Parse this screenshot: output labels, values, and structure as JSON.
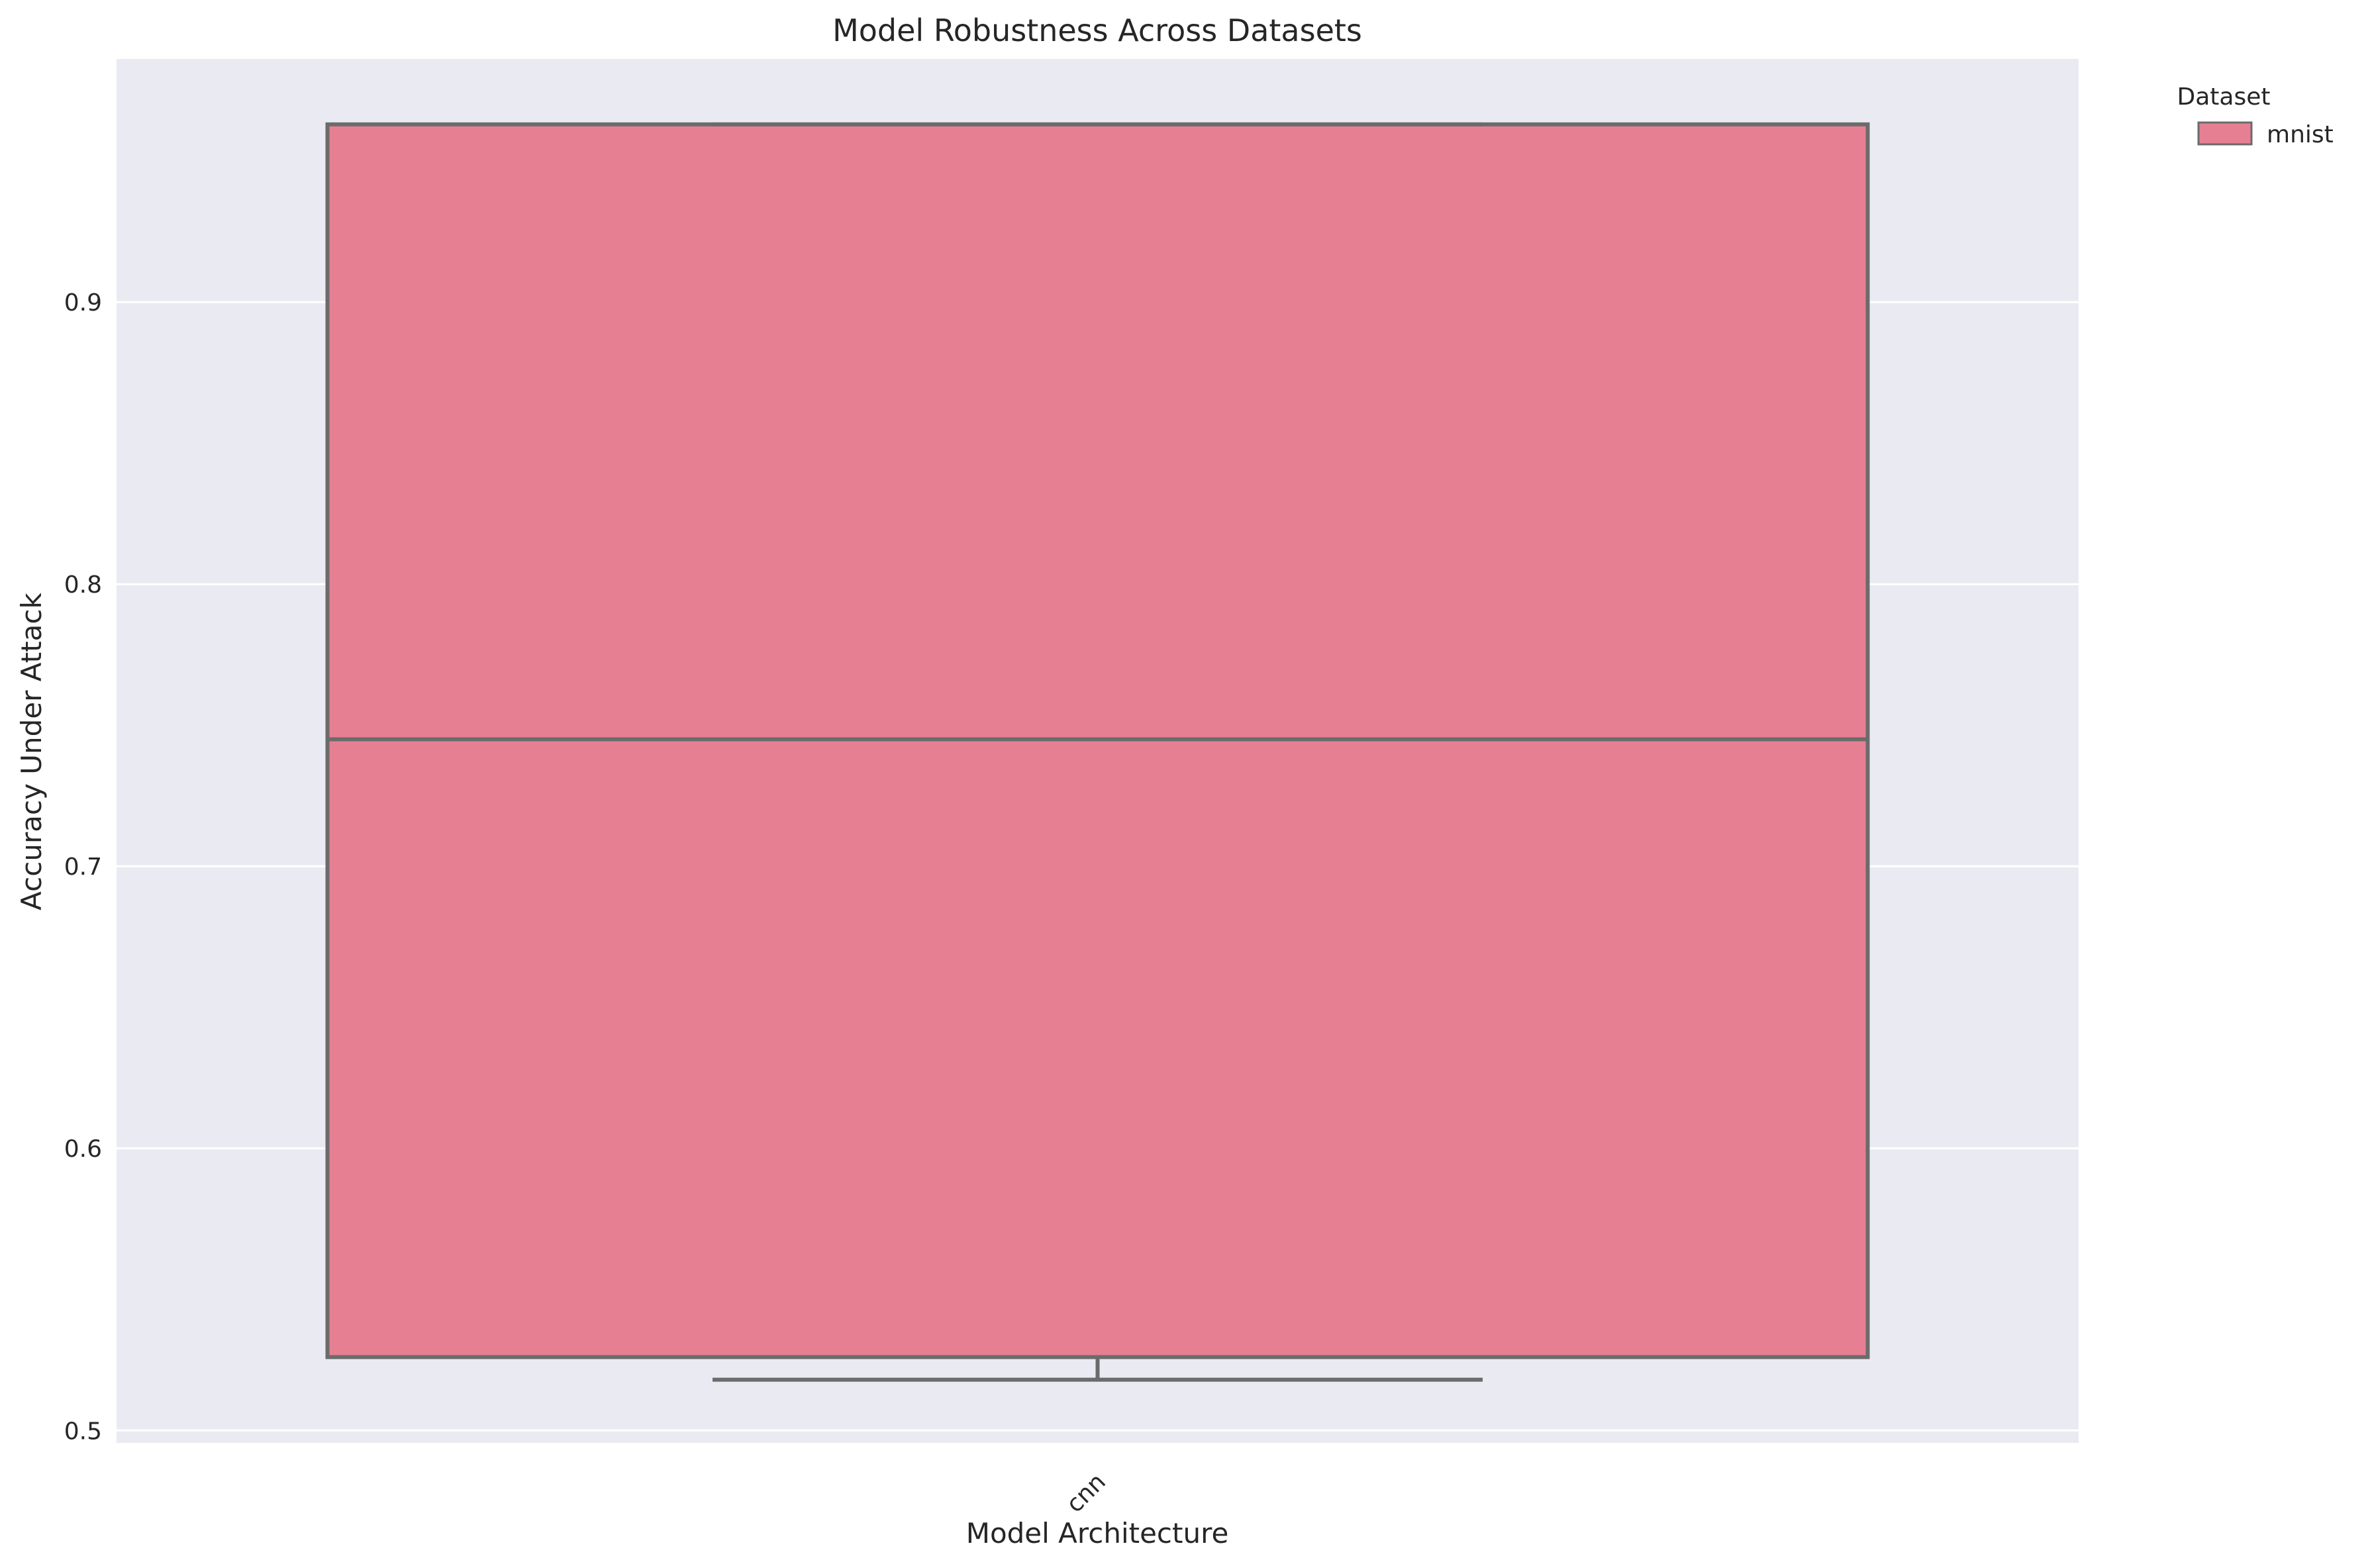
{
  "chart_data": {
    "type": "box",
    "title": "Model Robustness Across Datasets",
    "xlabel": "Model Architecture",
    "ylabel": "Accuracy Under Attack",
    "categories": [
      "cnn"
    ],
    "ylim": [
      0.4956,
      0.9862
    ],
    "yticks": [
      0.5,
      0.6,
      0.7,
      0.8,
      0.9
    ],
    "ytick_labels": [
      "0.5",
      "0.6",
      "0.7",
      "0.8",
      "0.9"
    ],
    "grid": true,
    "legend": {
      "title": "Dataset",
      "placement": "outside-top-right",
      "entries": [
        "mnist"
      ]
    },
    "series": [
      {
        "name": "mnist",
        "color": "#e77f92",
        "edge_color": "#6b6b6b",
        "boxes": [
          {
            "category": "cnn",
            "whisker_low": 0.518,
            "q1": 0.526,
            "median": 0.745,
            "q3": 0.963,
            "whisker_high": 0.963
          }
        ]
      }
    ],
    "background_color": "#eaeaf2",
    "grid_color": "#ffffff"
  }
}
